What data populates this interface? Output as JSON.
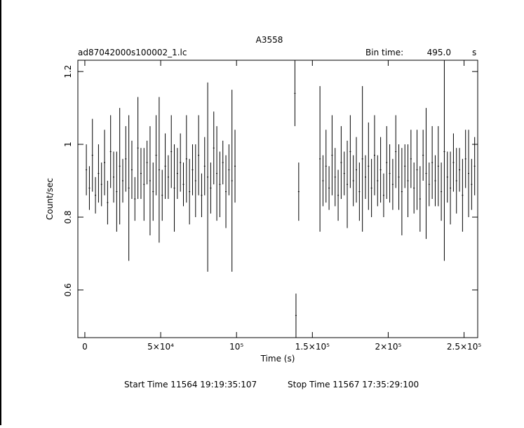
{
  "chart_data": {
    "type": "errorbar",
    "title": "A3558",
    "subtitle": "ad87042000s100002_1.lc",
    "bin_label": "Bin time:",
    "bin_value": "495.0",
    "bin_unit": "s",
    "xlabel": "Time (s)",
    "ylabel": "Count/sec",
    "footer_start": "Start Time 11564  19:19:35:107",
    "footer_stop": "Stop Time 11567  17:35:29:100",
    "xlim": [
      -4600,
      259000
    ],
    "ylim": [
      0.469,
      1.231
    ],
    "xticks": [
      0,
      {
        "value": 50000,
        "label": "5×10⁴"
      },
      {
        "value": 100000,
        "label": "10⁵"
      },
      {
        "value": 150000,
        "label": "1.5×10⁵"
      },
      {
        "value": 200000,
        "label": "2×10⁵"
      },
      {
        "value": 250000,
        "label": "2.5×10⁵"
      }
    ],
    "yticks": [
      0.6,
      0.8,
      1,
      1.2
    ],
    "series": [
      {
        "name": "A3558",
        "color": "#000000",
        "x": [
          1000,
          3000,
          5000,
          7000,
          9000,
          11000,
          13000,
          15000,
          17000,
          19000,
          21000,
          23000,
          25000,
          27000,
          29000,
          31000,
          33000,
          35000,
          37000,
          39000,
          41000,
          43000,
          45000,
          47000,
          49000,
          51000,
          53000,
          55000,
          57000,
          59000,
          61000,
          63000,
          65000,
          67000,
          69000,
          71000,
          73000,
          75000,
          77000,
          79000,
          81000,
          83000,
          85000,
          87000,
          89000,
          91000,
          93000,
          95000,
          97000,
          99000,
          138500,
          139200,
          141000,
          155000,
          157000,
          159000,
          161000,
          163000,
          165000,
          167000,
          169000,
          171000,
          173000,
          175000,
          177000,
          179000,
          181000,
          183000,
          185000,
          187000,
          189000,
          191000,
          193000,
          195000,
          197000,
          199000,
          201000,
          203000,
          205000,
          207000,
          209000,
          211000,
          213000,
          215000,
          217000,
          219000,
          221000,
          223000,
          225000,
          227000,
          229000,
          231000,
          233000,
          235000,
          237000,
          239000,
          241000,
          243000,
          245000,
          247000,
          249000,
          251000,
          253000,
          255000,
          257000
        ],
        "values": [
          0.93,
          0.88,
          0.97,
          0.86,
          0.92,
          0.89,
          0.95,
          0.84,
          0.98,
          0.91,
          0.87,
          0.94,
          0.9,
          0.96,
          0.88,
          0.93,
          0.85,
          0.99,
          0.92,
          0.89,
          0.95,
          0.9,
          0.87,
          0.97,
          0.93,
          0.86,
          0.94,
          0.91,
          0.98,
          0.88,
          0.92,
          0.95,
          0.89,
          0.96,
          0.87,
          0.93,
          0.9,
          0.97,
          0.86,
          0.94,
          0.91,
          0.88,
          0.99,
          0.92,
          0.89,
          0.95,
          0.87,
          0.93,
          0.9,
          0.94,
          1.14,
          0.53,
          0.87,
          0.96,
          0.9,
          0.94,
          0.88,
          0.97,
          0.91,
          0.86,
          0.95,
          0.92,
          0.89,
          0.98,
          0.9,
          0.93,
          0.87,
          0.96,
          0.91,
          0.94,
          0.88,
          0.97,
          0.9,
          0.93,
          0.86,
          0.95,
          0.92,
          0.89,
          0.98,
          0.91,
          0.87,
          0.94,
          0.9,
          0.96,
          0.88,
          0.93,
          0.85,
          0.97,
          0.92,
          0.89,
          0.95,
          0.9,
          0.94,
          0.87,
          0.98,
          0.91,
          0.88,
          0.95,
          0.9,
          0.93,
          0.86,
          0.96,
          0.92,
          0.89,
          0.94
        ],
        "errors": [
          0.07,
          0.06,
          0.1,
          0.05,
          0.08,
          0.06,
          0.09,
          0.06,
          0.1,
          0.07,
          0.11,
          0.16,
          0.06,
          0.09,
          0.2,
          0.08,
          0.06,
          0.14,
          0.07,
          0.1,
          0.06,
          0.15,
          0.08,
          0.11,
          0.2,
          0.07,
          0.09,
          0.06,
          0.1,
          0.12,
          0.07,
          0.08,
          0.06,
          0.12,
          0.09,
          0.07,
          0.1,
          0.11,
          0.06,
          0.08,
          0.26,
          0.07,
          0.1,
          0.13,
          0.09,
          0.06,
          0.1,
          0.07,
          0.25,
          0.1,
          0.09,
          0.06,
          0.08,
          0.2,
          0.07,
          0.1,
          0.06,
          0.11,
          0.08,
          0.07,
          0.1,
          0.06,
          0.12,
          0.1,
          0.07,
          0.09,
          0.08,
          0.2,
          0.06,
          0.12,
          0.08,
          0.11,
          0.07,
          0.09,
          0.06,
          0.1,
          0.08,
          0.07,
          0.1,
          0.09,
          0.12,
          0.06,
          0.1,
          0.08,
          0.07,
          0.11,
          0.09,
          0.07,
          0.18,
          0.06,
          0.1,
          0.07,
          0.11,
          0.08,
          0.3,
          0.07,
          0.1,
          0.08,
          0.09,
          0.06,
          0.1,
          0.08,
          0.12,
          0.07,
          0.08
        ]
      }
    ]
  }
}
